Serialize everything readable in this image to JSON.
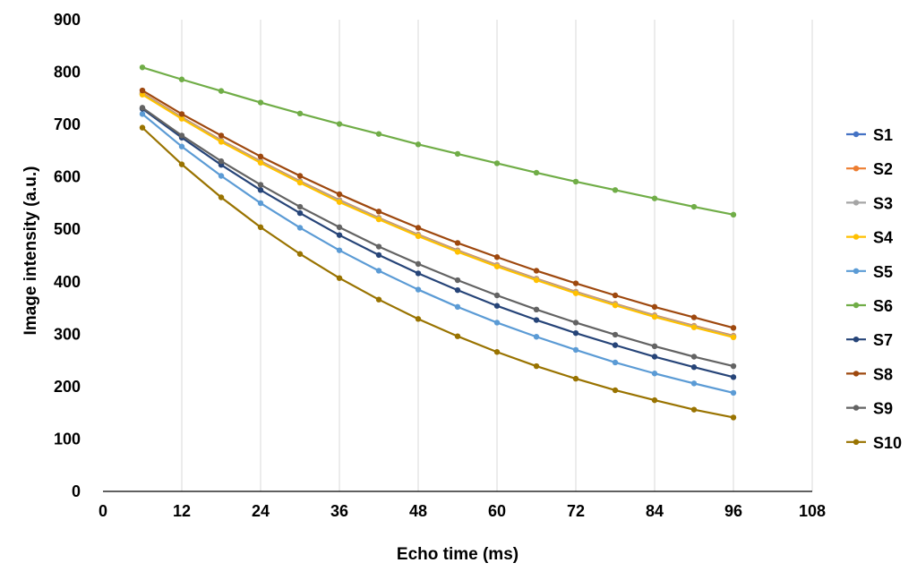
{
  "chart_data": {
    "type": "line",
    "title": "",
    "xlabel": "Echo time (ms)",
    "ylabel": "Image intensity (a.u.)",
    "xlim": [
      0,
      108
    ],
    "ylim": [
      0,
      900
    ],
    "xticks": [
      0,
      12,
      24,
      36,
      48,
      60,
      72,
      84,
      96,
      108
    ],
    "yticks": [
      0,
      100,
      200,
      300,
      400,
      500,
      600,
      700,
      800,
      900
    ],
    "grid": {
      "vertical": true,
      "horizontal": false
    },
    "legend_position": "right",
    "x": [
      6,
      12,
      18,
      24,
      30,
      36,
      42,
      48,
      54,
      60,
      66,
      72,
      78,
      84,
      90,
      96
    ],
    "series": [
      {
        "name": "S1",
        "color": "#4472c4",
        "values": [
          758,
          712,
          668,
          628,
          590,
          553,
          520,
          488,
          458,
          430,
          404,
          379,
          356,
          334,
          314,
          295
        ]
      },
      {
        "name": "S2",
        "color": "#ed7d31",
        "values": [
          760,
          714,
          670,
          630,
          592,
          556,
          522,
          490,
          460,
          432,
          406,
          381,
          358,
          336,
          316,
          297
        ]
      },
      {
        "name": "S3",
        "color": "#a5a5a5",
        "values": [
          759,
          713,
          669,
          629,
          591,
          555,
          521,
          489,
          459,
          431,
          405,
          380,
          357,
          335,
          315,
          296
        ]
      },
      {
        "name": "S4",
        "color": "#ffc000",
        "values": [
          757,
          711,
          667,
          627,
          589,
          552,
          519,
          487,
          457,
          429,
          403,
          378,
          355,
          333,
          313,
          294
        ]
      },
      {
        "name": "S5",
        "color": "#5b9bd5",
        "values": [
          720,
          658,
          602,
          550,
          503,
          460,
          421,
          385,
          352,
          322,
          295,
          270,
          246,
          225,
          206,
          188
        ]
      },
      {
        "name": "S6",
        "color": "#70ad47",
        "values": [
          809,
          786,
          764,
          742,
          721,
          701,
          682,
          662,
          644,
          626,
          608,
          591,
          575,
          559,
          543,
          528
        ]
      },
      {
        "name": "S7",
        "color": "#264478",
        "values": [
          730,
          675,
          623,
          575,
          531,
          489,
          451,
          416,
          384,
          354,
          327,
          302,
          279,
          257,
          237,
          218
        ]
      },
      {
        "name": "S8",
        "color": "#9e480e",
        "values": [
          765,
          720,
          679,
          639,
          602,
          567,
          534,
          503,
          474,
          447,
          421,
          397,
          374,
          352,
          332,
          312
        ]
      },
      {
        "name": "S9",
        "color": "#636363",
        "values": [
          732,
          679,
          630,
          585,
          543,
          504,
          467,
          434,
          403,
          374,
          347,
          322,
          299,
          277,
          257,
          239
        ]
      },
      {
        "name": "S10",
        "color": "#997300",
        "values": [
          694,
          624,
          561,
          504,
          453,
          407,
          366,
          329,
          296,
          266,
          239,
          215,
          193,
          174,
          156,
          141
        ]
      }
    ]
  }
}
